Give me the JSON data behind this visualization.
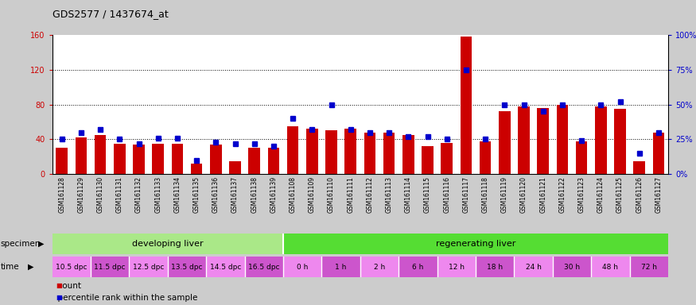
{
  "title": "GDS2577 / 1437674_at",
  "samples": [
    "GSM161128",
    "GSM161129",
    "GSM161130",
    "GSM161131",
    "GSM161132",
    "GSM161133",
    "GSM161134",
    "GSM161135",
    "GSM161136",
    "GSM161137",
    "GSM161138",
    "GSM161139",
    "GSM161108",
    "GSM161109",
    "GSM161110",
    "GSM161111",
    "GSM161112",
    "GSM161113",
    "GSM161114",
    "GSM161115",
    "GSM161116",
    "GSM161117",
    "GSM161118",
    "GSM161119",
    "GSM161120",
    "GSM161121",
    "GSM161122",
    "GSM161123",
    "GSM161124",
    "GSM161125",
    "GSM161126",
    "GSM161127"
  ],
  "counts": [
    30,
    42,
    45,
    35,
    34,
    35,
    35,
    12,
    34,
    15,
    30,
    30,
    55,
    52,
    50,
    52,
    48,
    48,
    45,
    32,
    36,
    158,
    38,
    72,
    78,
    76,
    80,
    38,
    78,
    75,
    15,
    48
  ],
  "percentiles": [
    25,
    30,
    32,
    25,
    22,
    26,
    26,
    10,
    23,
    22,
    22,
    20,
    40,
    32,
    50,
    32,
    30,
    30,
    27,
    27,
    25,
    75,
    25,
    50,
    50,
    45,
    50,
    24,
    50,
    52,
    15,
    30
  ],
  "bar_color": "#cc0000",
  "pct_color": "#0000cc",
  "ylim_left": [
    0,
    160
  ],
  "ylim_right": [
    0,
    100
  ],
  "yticks_left": [
    0,
    40,
    80,
    120,
    160
  ],
  "yticks_right": [
    0,
    25,
    50,
    75,
    100
  ],
  "ytick_labels_left": [
    "0",
    "40",
    "80",
    "120",
    "160"
  ],
  "ytick_labels_right": [
    "0%",
    "25%",
    "50%",
    "75%",
    "100%"
  ],
  "specimen_groups": [
    {
      "label": "developing liver",
      "start": 0,
      "end": 12,
      "color": "#aae888"
    },
    {
      "label": "regenerating liver",
      "start": 12,
      "end": 32,
      "color": "#55dd33"
    }
  ],
  "time_groups": [
    {
      "label": "10.5 dpc",
      "start": 0,
      "end": 2,
      "color": "#ee88ee"
    },
    {
      "label": "11.5 dpc",
      "start": 2,
      "end": 4,
      "color": "#cc55cc"
    },
    {
      "label": "12.5 dpc",
      "start": 4,
      "end": 6,
      "color": "#ee88ee"
    },
    {
      "label": "13.5 dpc",
      "start": 6,
      "end": 8,
      "color": "#cc55cc"
    },
    {
      "label": "14.5 dpc",
      "start": 8,
      "end": 10,
      "color": "#ee88ee"
    },
    {
      "label": "16.5 dpc",
      "start": 10,
      "end": 12,
      "color": "#cc55cc"
    },
    {
      "label": "0 h",
      "start": 12,
      "end": 14,
      "color": "#ee88ee"
    },
    {
      "label": "1 h",
      "start": 14,
      "end": 16,
      "color": "#cc55cc"
    },
    {
      "label": "2 h",
      "start": 16,
      "end": 18,
      "color": "#ee88ee"
    },
    {
      "label": "6 h",
      "start": 18,
      "end": 20,
      "color": "#cc55cc"
    },
    {
      "label": "12 h",
      "start": 20,
      "end": 22,
      "color": "#ee88ee"
    },
    {
      "label": "18 h",
      "start": 22,
      "end": 24,
      "color": "#cc55cc"
    },
    {
      "label": "24 h",
      "start": 24,
      "end": 26,
      "color": "#ee88ee"
    },
    {
      "label": "30 h",
      "start": 26,
      "end": 28,
      "color": "#cc55cc"
    },
    {
      "label": "48 h",
      "start": 28,
      "end": 30,
      "color": "#ee88ee"
    },
    {
      "label": "72 h",
      "start": 30,
      "end": 32,
      "color": "#cc55cc"
    }
  ],
  "specimen_label": "specimen",
  "time_label": "time",
  "legend_count": "count",
  "legend_pct": "percentile rank within the sample",
  "background_color": "#cccccc",
  "plot_bg_color": "#ffffff",
  "grid_lines": [
    40,
    80,
    120
  ]
}
